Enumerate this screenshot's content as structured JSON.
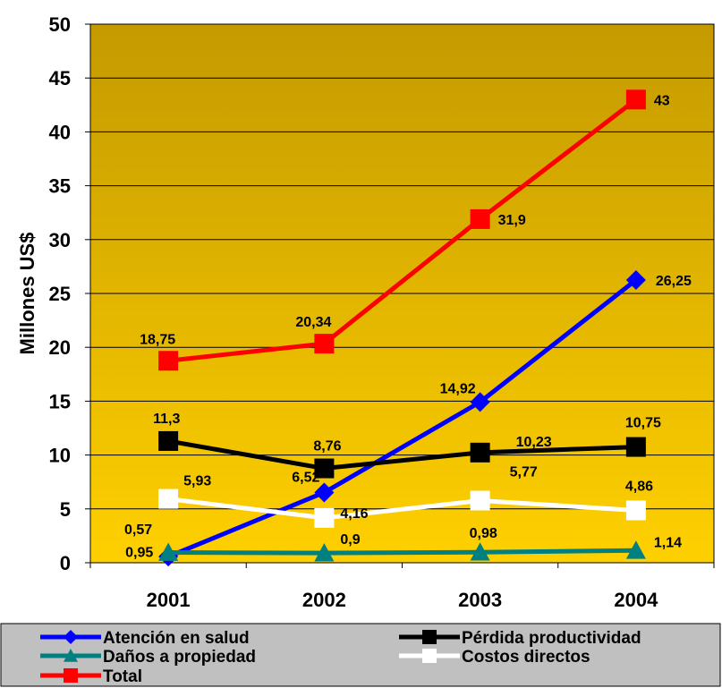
{
  "chart_data": {
    "type": "line",
    "title": "",
    "xlabel": "",
    "ylabel": "Millones US$",
    "ylim": [
      0,
      50
    ],
    "yticks": [
      0,
      5,
      10,
      15,
      20,
      25,
      30,
      35,
      40,
      45,
      50
    ],
    "categories": [
      "2001",
      "2002",
      "2003",
      "2004"
    ],
    "grid": "horizontal",
    "legend_position": "bottom",
    "series": [
      {
        "name": "Atención en salud",
        "color": "#0000ff",
        "marker": "diamond",
        "values": [
          0.57,
          6.52,
          14.92,
          26.25
        ],
        "labels": [
          "0,57",
          "6,52",
          "14,92",
          "26,25"
        ]
      },
      {
        "name": "Pérdida productividad",
        "color": "#000000",
        "marker": "square",
        "values": [
          11.3,
          8.76,
          10.23,
          10.75
        ],
        "labels": [
          "11,3",
          "8,76",
          "10,23",
          "10,75"
        ]
      },
      {
        "name": "Daños a propiedad",
        "color": "#008080",
        "marker": "triangle",
        "values": [
          0.95,
          0.9,
          0.98,
          1.14
        ],
        "labels": [
          "0,95",
          "0,9",
          "0,98",
          "1,14"
        ]
      },
      {
        "name": "Costos directos",
        "color": "#ffffff",
        "marker": "square",
        "values": [
          5.93,
          4.16,
          5.77,
          4.86
        ],
        "labels": [
          "5,93",
          "4,16",
          "5,77",
          "4,86"
        ]
      },
      {
        "name": "Total",
        "color": "#ff0000",
        "marker": "square",
        "values": [
          18.75,
          20.34,
          31.9,
          43
        ],
        "labels": [
          "18,75",
          "20,34",
          "31,9",
          "43"
        ]
      }
    ]
  }
}
